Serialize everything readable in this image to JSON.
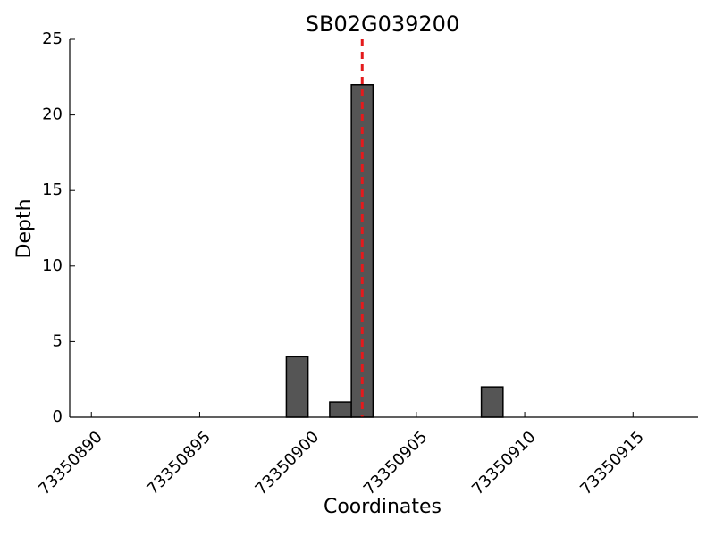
{
  "chart_data": {
    "type": "bar",
    "title": "SB02G039200",
    "xlabel": "Coordinates",
    "ylabel": "Depth",
    "x": [
      73350899,
      73350901,
      73350902,
      73350908
    ],
    "values": [
      4,
      1,
      22,
      2
    ],
    "color": "#555555",
    "vline": 73350902.5,
    "vline_color": "#e41a1c",
    "xlim": [
      73350889,
      73350918
    ],
    "xticks": [
      73350890,
      73350895,
      73350900,
      73350905,
      73350910,
      73350915
    ],
    "ylim": [
      0,
      25
    ],
    "yticks": [
      0,
      5,
      10,
      15,
      20,
      25
    ],
    "grid": false
  }
}
